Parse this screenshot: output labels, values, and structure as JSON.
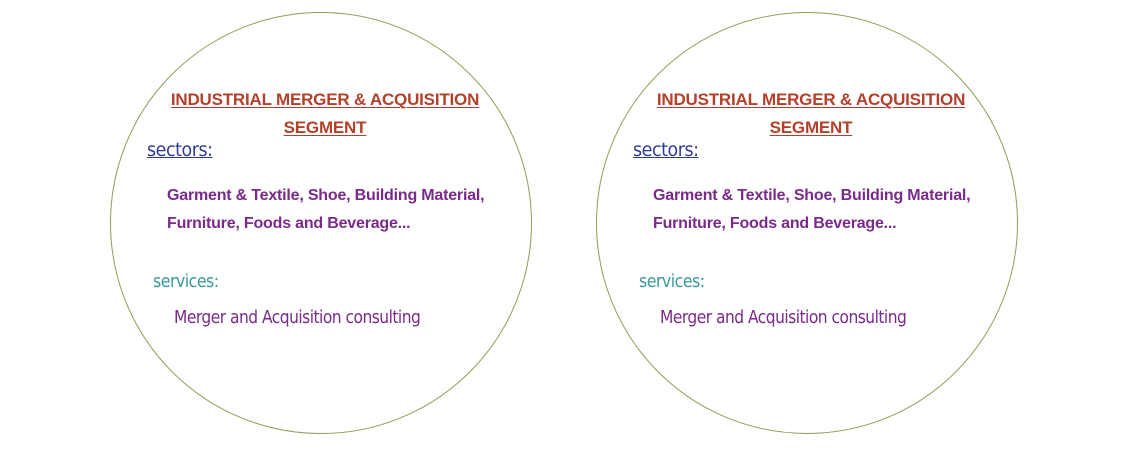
{
  "panels": [
    {
      "title_line1": "INDUSTRIAL MERGER & ACQUISITION",
      "title_line2": "SEGMENT",
      "sectors_heading": "sectors:",
      "sectors_line1": "Garment & Textile, Shoe, Building Material,",
      "sectors_line2": "Furniture, Foods and Beverage...",
      "services_heading": "services:",
      "services_text": "Merger and Acquisition consulting"
    },
    {
      "title_line1": "INDUSTRIAL MERGER & ACQUISITION",
      "title_line2": "SEGMENT",
      "sectors_heading": "sectors:",
      "sectors_line1": "Garment & Textile, Shoe, Building Material,",
      "sectors_line2": "Furniture, Foods and Beverage...",
      "services_heading": "services:",
      "services_text": "Merger and Acquisition consulting"
    }
  ],
  "colors": {
    "title": "#b3402a",
    "sectors_heading": "#2e3a9a",
    "body_text": "#7a2a8a",
    "services_heading": "#3a9a9a",
    "circle_border": "#9a9a5a"
  }
}
